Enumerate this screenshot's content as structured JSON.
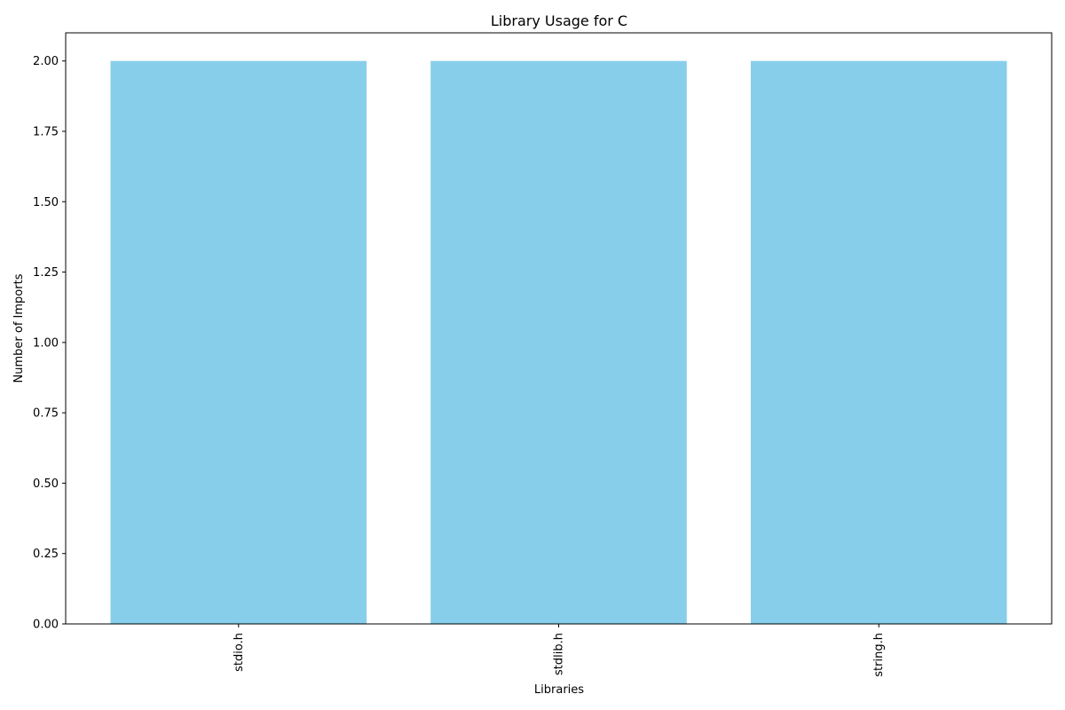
{
  "chart_data": {
    "type": "bar",
    "title": "Library Usage for C",
    "xlabel": "Libraries",
    "ylabel": "Number of Imports",
    "categories": [
      "stdio.h",
      "stdlib.h",
      "string.h"
    ],
    "values": [
      2,
      2,
      2
    ],
    "ylim": [
      0,
      2.1
    ],
    "yticks": [
      "0.00",
      "0.25",
      "0.50",
      "0.75",
      "1.00",
      "1.25",
      "1.50",
      "1.75",
      "2.00"
    ],
    "grid": false,
    "legend": "none",
    "bar_color": "#87CEEB"
  }
}
